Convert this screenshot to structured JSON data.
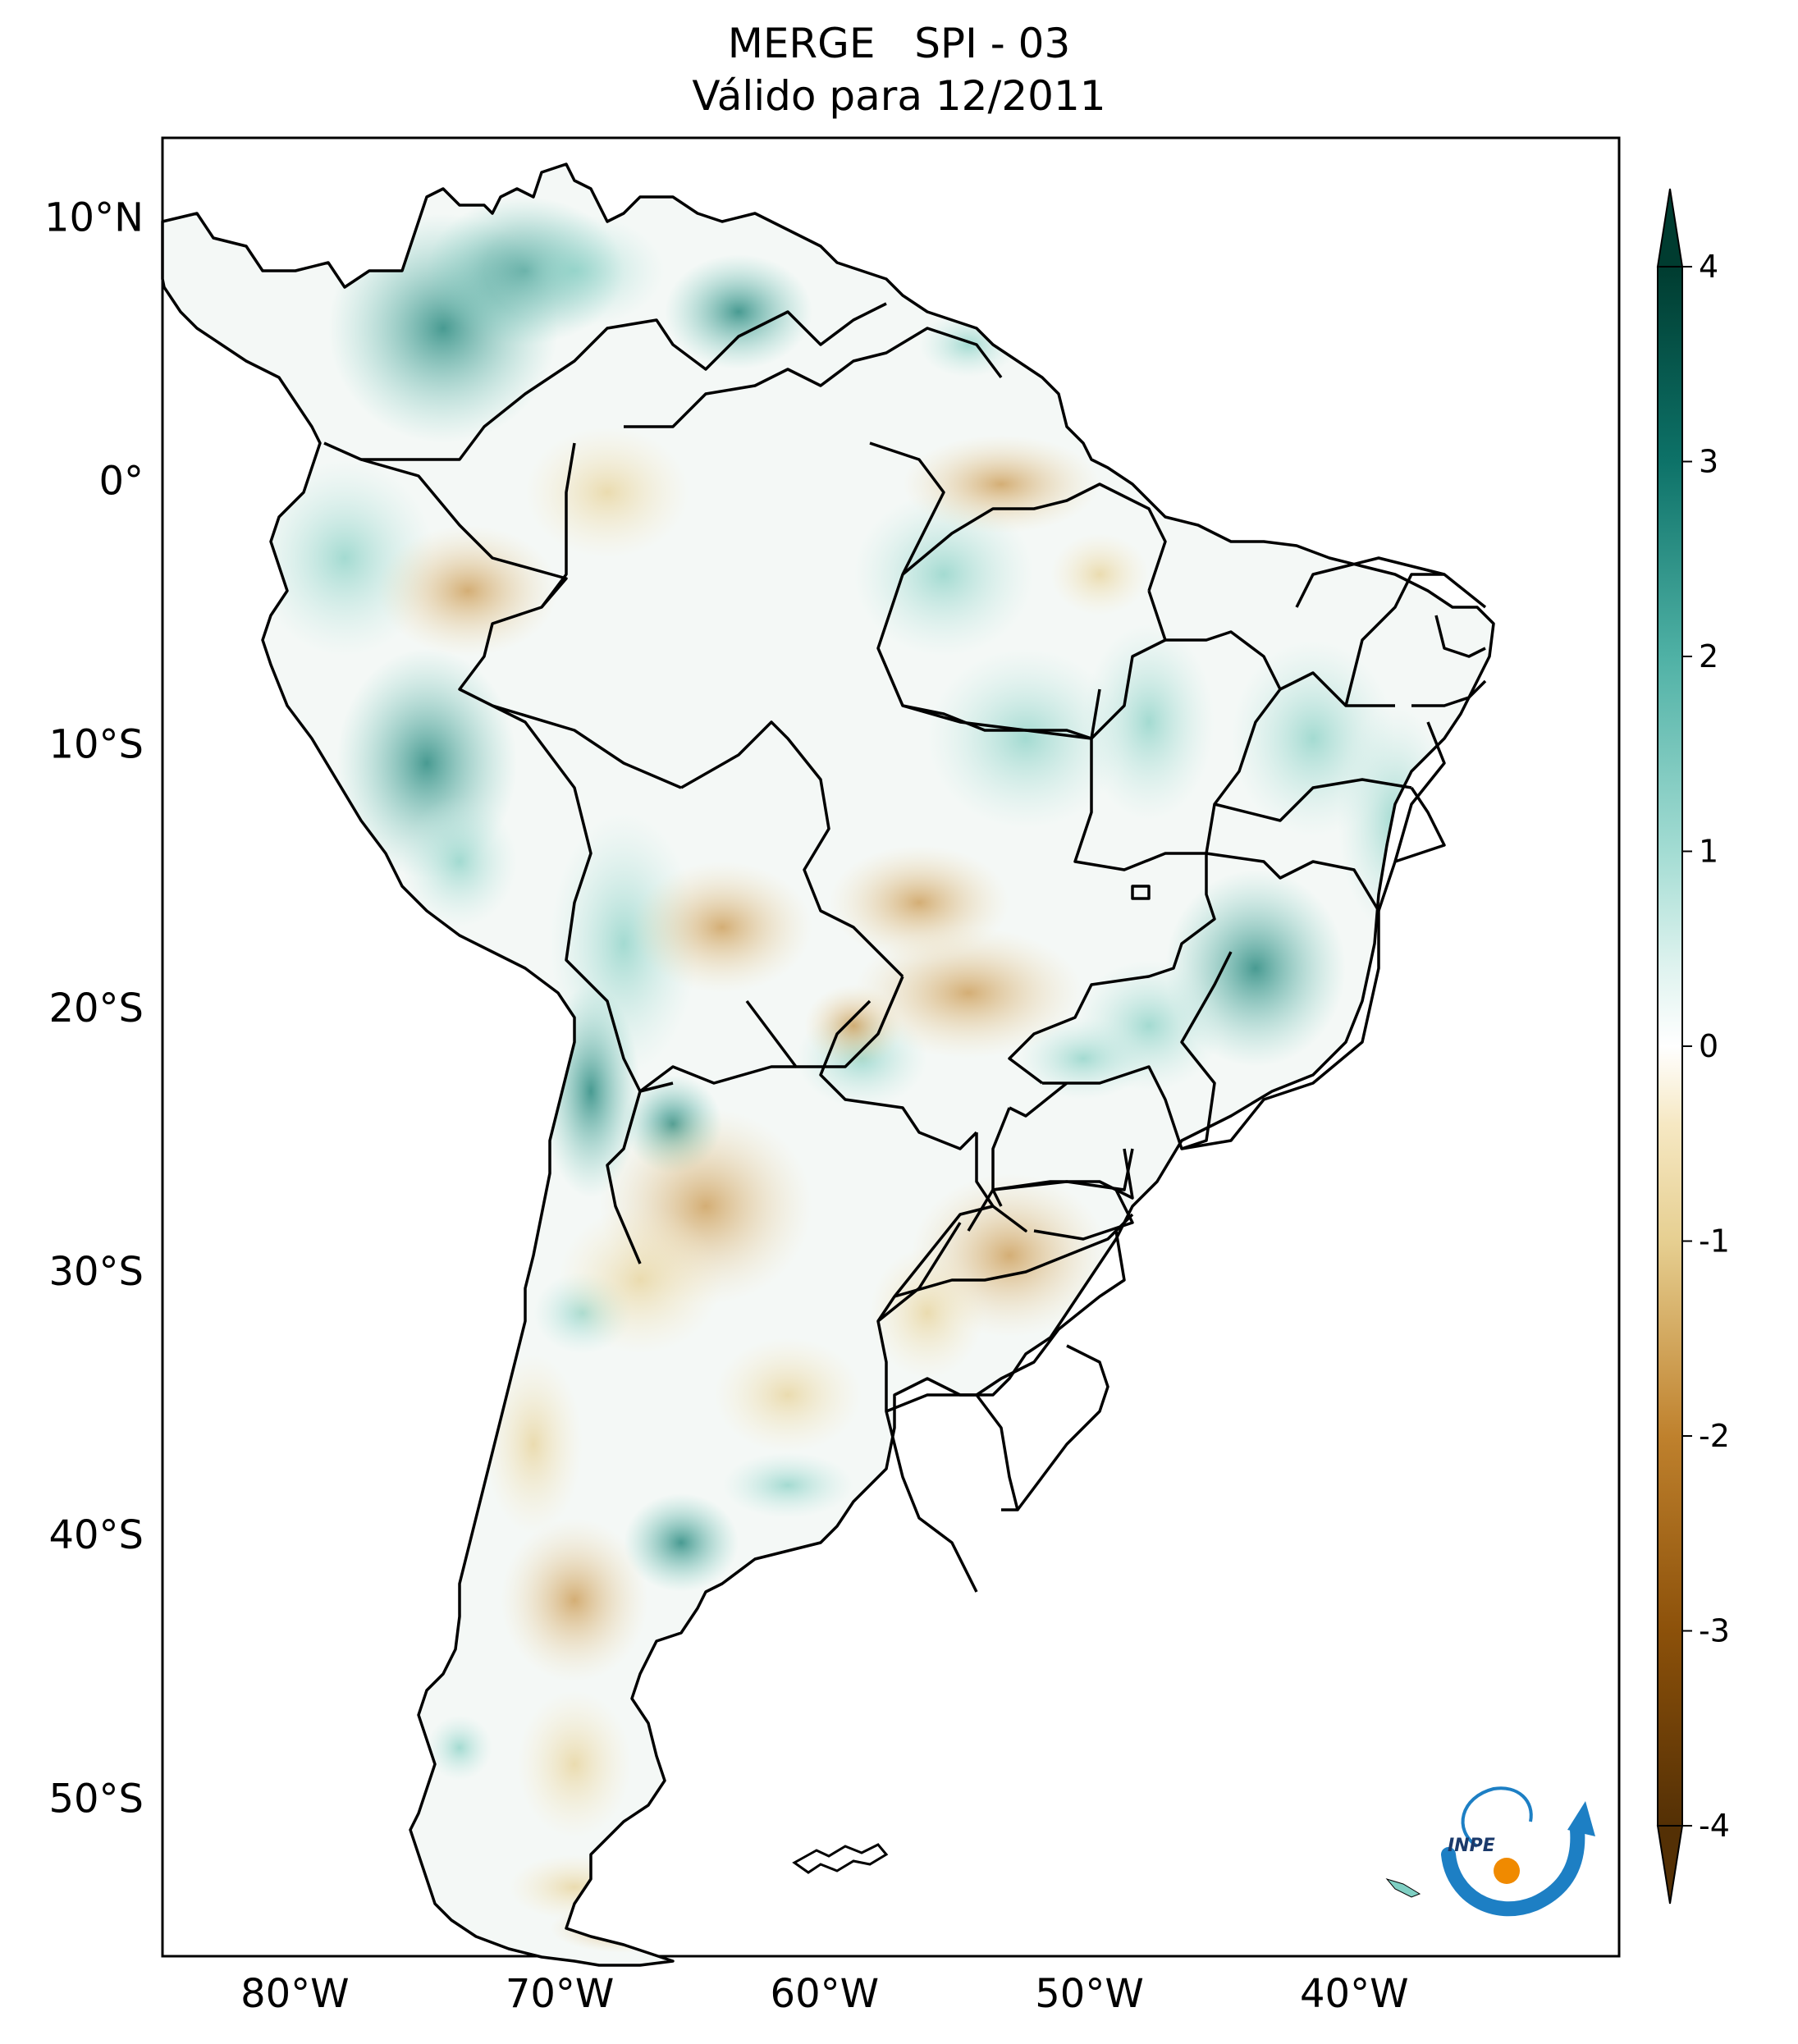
{
  "title": {
    "line1": "MERGE   SPI - 03",
    "line2": "Válido para 12/2011"
  },
  "map": {
    "lat_ticks": [
      {
        "value": 10,
        "label": "10°N"
      },
      {
        "value": 0,
        "label": "0°"
      },
      {
        "value": -10,
        "label": "10°S"
      },
      {
        "value": -20,
        "label": "20°S"
      },
      {
        "value": -30,
        "label": "30°S"
      },
      {
        "value": -40,
        "label": "40°S"
      },
      {
        "value": -50,
        "label": "50°S"
      }
    ],
    "lon_ticks": [
      {
        "value": -80,
        "label": "80°W"
      },
      {
        "value": -70,
        "label": "70°W"
      },
      {
        "value": -60,
        "label": "60°W"
      },
      {
        "value": -50,
        "label": "50°W"
      },
      {
        "value": -40,
        "label": "40°W"
      }
    ],
    "lon_range": [
      -85,
      -30
    ],
    "lat_range": [
      -56,
      13
    ]
  },
  "colorbar": {
    "ticks": [
      "4",
      "3",
      "2",
      "1",
      "0",
      "-1",
      "-2",
      "-3",
      "-4"
    ],
    "range": [
      -4,
      4
    ],
    "colors": [
      "#543005",
      "#8c510a",
      "#bf812d",
      "#dfc27d",
      "#f6e8c3",
      "#ffffff",
      "#c7eae5",
      "#80cdc1",
      "#35978f",
      "#01665e",
      "#003c30"
    ]
  },
  "logo": {
    "text": "INPE"
  }
}
